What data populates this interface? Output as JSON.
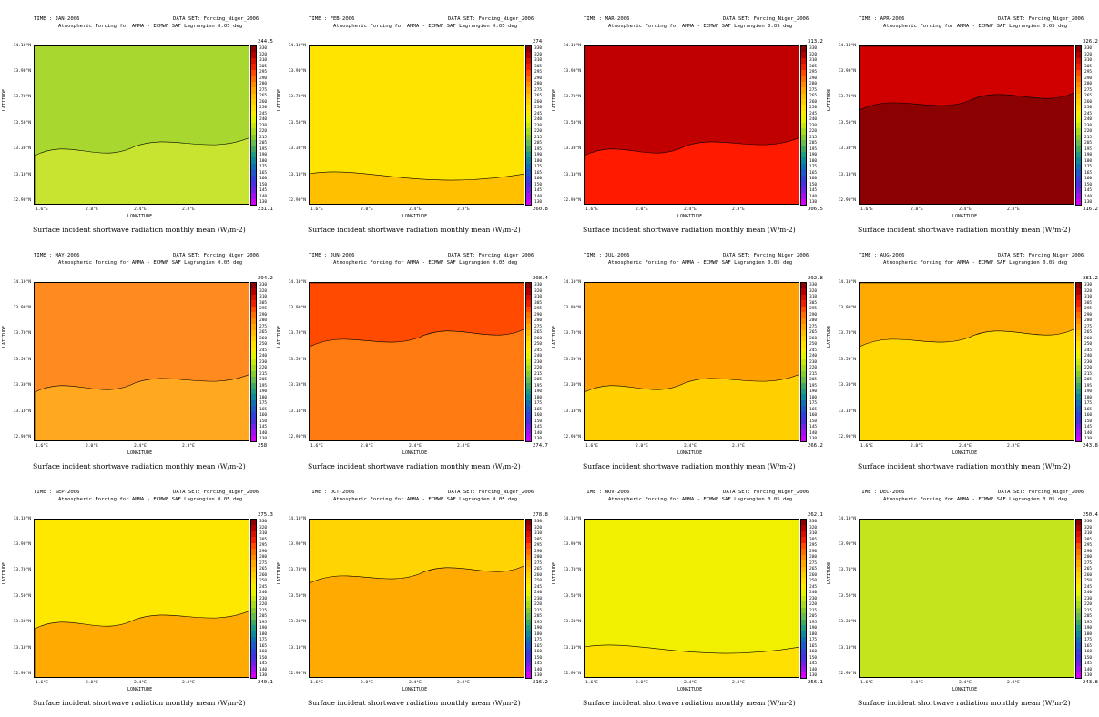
{
  "common": {
    "dataset": "DATA SET: Forcing_Niger_2006",
    "subtitle": "Atmospheric Forcing for AMMA - ECMWF SAF Lagrangien 0.05 deg",
    "xlabel": "LONGITUDE",
    "ylabel": "LATITUDE",
    "caption": "Surface incident shortwave radiation monthly mean (W/m-2)",
    "yticks": [
      "14.10°N",
      "13.90°N",
      "13.70°N",
      "13.50°N",
      "13.30°N",
      "13.10°N",
      "12.90°N"
    ],
    "xticks": [
      "1.6°E",
      "2.0°E",
      "2.4°E",
      "2.8°E"
    ],
    "colorbar_levels": [
      "330",
      "320",
      "310",
      "305",
      "295",
      "290",
      "280",
      "275",
      "265",
      "260",
      "250",
      "245",
      "240",
      "230",
      "220",
      "215",
      "205",
      "195",
      "190",
      "180",
      "175",
      "165",
      "160",
      "150",
      "145",
      "140",
      "130"
    ],
    "colorbar_colors": [
      "#8b0000",
      "#b30000",
      "#d81000",
      "#f02000",
      "#ff4a00",
      "#ff6e00",
      "#ff8c00",
      "#ffa600",
      "#ffbe00",
      "#ffd000",
      "#ffe000",
      "#f8ec00",
      "#e4f400",
      "#c8e810",
      "#a8dc20",
      "#86cc30",
      "#66bc50",
      "#40a860",
      "#209a80",
      "#10889a",
      "#1070b0",
      "#2058c8",
      "#3040d8",
      "#4830e0",
      "#7020e8",
      "#a010f0",
      "#d000f8"
    ]
  },
  "chart_data": [
    {
      "type": "heatmap",
      "time": "TIME : JAN-2006",
      "colorbar_max": "244.5",
      "colorbar_min": "231.1",
      "base_color": "#a8d830",
      "patch_color": "#c8e430"
    },
    {
      "type": "heatmap",
      "time": "TIME : FEB-2006",
      "colorbar_max": "274",
      "colorbar_min": "260.8",
      "base_color": "#ffe400",
      "patch_color": "#ffc000"
    },
    {
      "type": "heatmap",
      "time": "TIME : MAR-2006",
      "colorbar_max": "313.2",
      "colorbar_min": "306.5",
      "base_color": "#c00000",
      "patch_color": "#ff1a00"
    },
    {
      "type": "heatmap",
      "time": "TIME : APR-2006",
      "colorbar_max": "326.2",
      "colorbar_min": "316.2",
      "base_color": "#8b0000",
      "patch_color": "#d00000"
    },
    {
      "type": "heatmap",
      "time": "TIME : MAY-2006",
      "colorbar_max": "294.2",
      "colorbar_min": "258",
      "base_color": "#ff8a20",
      "patch_color": "#ffa820"
    },
    {
      "type": "heatmap",
      "time": "TIME : JUN-2006",
      "colorbar_max": "298.4",
      "colorbar_min": "274.7",
      "base_color": "#ff7a10",
      "patch_color": "#ff4a00"
    },
    {
      "type": "heatmap",
      "time": "TIME : JUL-2006",
      "colorbar_max": "292.8",
      "colorbar_min": "266.2",
      "base_color": "#ffa000",
      "patch_color": "#ffd000"
    },
    {
      "type": "heatmap",
      "time": "TIME : AUG-2006",
      "colorbar_max": "281.2",
      "colorbar_min": "243.8",
      "base_color": "#ffd800",
      "patch_color": "#ffaa00"
    },
    {
      "type": "heatmap",
      "time": "TIME : SEP-2006",
      "colorbar_max": "275.3",
      "colorbar_min": "240.1",
      "base_color": "#ffe800",
      "patch_color": "#ffaa00"
    },
    {
      "type": "heatmap",
      "time": "TIME : OCT-2006",
      "colorbar_max": "278.8",
      "colorbar_min": "216.2",
      "base_color": "#ffaa00",
      "patch_color": "#ffd400"
    },
    {
      "type": "heatmap",
      "time": "TIME : NOV-2006",
      "colorbar_max": "262.1",
      "colorbar_min": "256.1",
      "base_color": "#f0f000",
      "patch_color": "#ffe000"
    },
    {
      "type": "heatmap",
      "time": "TIME : DEC-2006",
      "colorbar_max": "250.4",
      "colorbar_min": "243.8",
      "base_color": "#c4e41c",
      "patch_color": "#c4e41c"
    }
  ]
}
